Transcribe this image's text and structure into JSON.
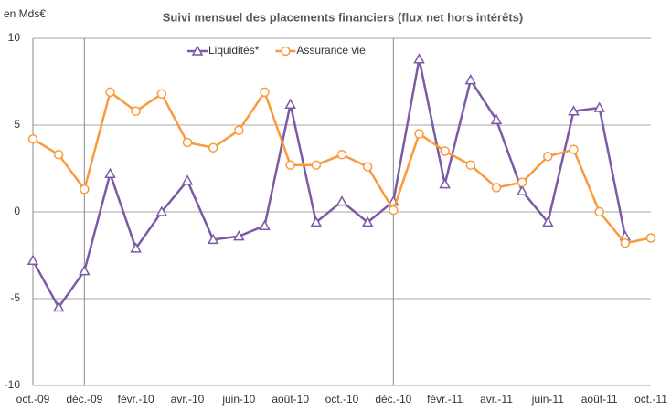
{
  "chart_data": {
    "type": "line",
    "title": "Suivi mensuel des placements financiers (flux net hors intérêts)",
    "y_unit_label": "en Mds€",
    "categories": [
      "oct.-09",
      null,
      "déc.-09",
      null,
      "févr.-10",
      null,
      "avr.-10",
      null,
      "juin-10",
      null,
      "août-10",
      null,
      "oct.-10",
      null,
      "déc.-10",
      null,
      "févr.-11",
      null,
      "avr.-11",
      null,
      "juin-11",
      null,
      "août-11",
      null,
      "oct.-11"
    ],
    "series": [
      {
        "name": "Liquidités*",
        "color": "#7b5aa6",
        "marker": "triangle",
        "values": [
          -2.8,
          -5.5,
          -3.4,
          2.2,
          -2.1,
          0,
          1.8,
          -1.6,
          -1.4,
          -0.8,
          6.2,
          -0.6,
          0.6,
          -0.6,
          0.6,
          8.8,
          1.6,
          7.6,
          5.3,
          1.2,
          -0.6,
          5.8,
          6.0,
          -1.4,
          null
        ]
      },
      {
        "name": "Assurance vie",
        "color": "#f79b3c",
        "marker": "circle",
        "values": [
          4.2,
          3.3,
          1.3,
          6.9,
          5.8,
          6.8,
          4.0,
          3.7,
          4.7,
          6.9,
          2.7,
          2.7,
          3.3,
          2.6,
          0.1,
          4.5,
          3.5,
          2.7,
          1.4,
          1.7,
          3.2,
          3.6,
          0,
          -1.8,
          -1.5
        ]
      }
    ],
    "ylim": [
      -10,
      10
    ],
    "yticks": [
      -10,
      -5,
      0,
      5,
      10
    ],
    "grid": true,
    "legend": "top"
  }
}
